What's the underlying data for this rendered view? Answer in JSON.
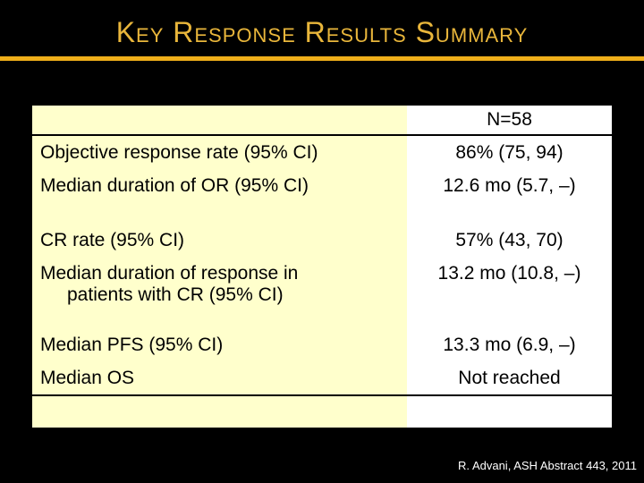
{
  "slide": {
    "title": "Key Response Results Summary",
    "footer_citation": "R. Advani, ASH Abstract 443, 2011"
  },
  "table": {
    "header": {
      "label_col": "",
      "value_col": "N=58"
    },
    "rows": [
      {
        "label": "Objective response rate (95% CI)",
        "value": "86% (75, 94)"
      },
      {
        "label": "Median duration of OR (95% CI)",
        "value": "12.6 mo (5.7, –)"
      },
      {
        "label": "CR rate (95% CI)",
        "value": "57% (43, 70)"
      },
      {
        "label": "Median duration of response in",
        "label2": "patients with CR (95% CI)",
        "value": "13.2 mo (10.8, –)"
      },
      {
        "label": "Median PFS (95% CI)",
        "value": "13.3 mo (6.9, –)"
      },
      {
        "label": "Median OS",
        "value": "Not reached"
      }
    ]
  },
  "colors": {
    "accent_gold_title": "#E9B63B",
    "accent_gold_rule": "#EFAF1A",
    "table_label_bg": "#FFFFCC",
    "table_value_bg": "#FFFFFF",
    "slide_bg": "#000000",
    "footer_text": "#FFFFFF"
  }
}
